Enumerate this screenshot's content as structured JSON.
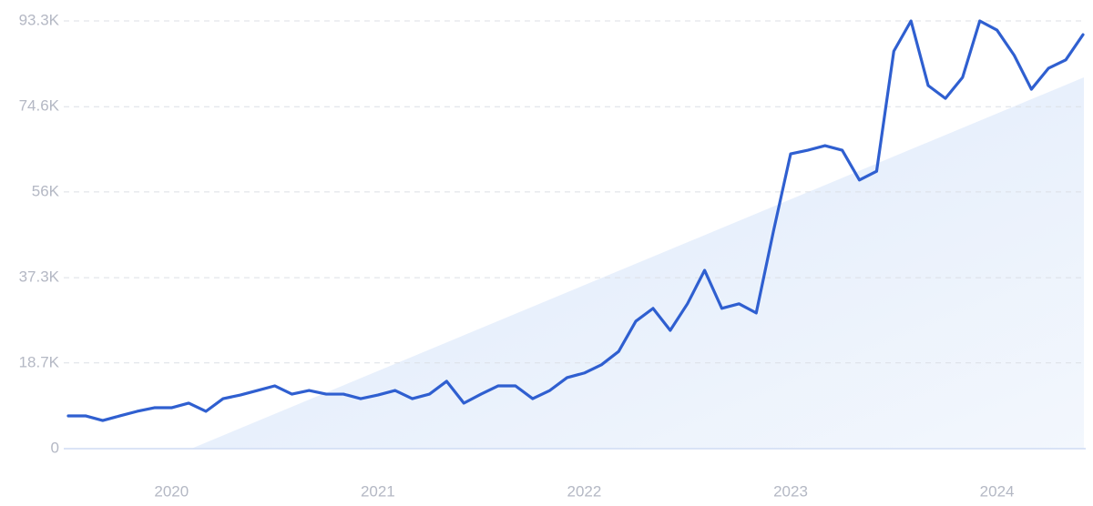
{
  "chart_data": {
    "type": "line",
    "categories": [
      null,
      null,
      null,
      null,
      null,
      null,
      "2020",
      null,
      null,
      null,
      null,
      null,
      null,
      null,
      null,
      null,
      null,
      null,
      "2021",
      null,
      null,
      null,
      null,
      null,
      null,
      null,
      null,
      null,
      null,
      null,
      "2022",
      null,
      null,
      null,
      null,
      null,
      null,
      null,
      null,
      null,
      null,
      null,
      "2023",
      null,
      null,
      null,
      null,
      null,
      null,
      null,
      null,
      null,
      null,
      null,
      "2024",
      null,
      null,
      null,
      null,
      null
    ],
    "values": [
      7150,
      7150,
      6150,
      7150,
      8140,
      8930,
      8930,
      9930,
      8140,
      10900,
      11700,
      12700,
      13700,
      11900,
      12700,
      11900,
      11900,
      10900,
      11700,
      12700,
      10900,
      11900,
      14700,
      9930,
      11900,
      13700,
      13700,
      10900,
      12700,
      15500,
      16500,
      18300,
      21200,
      27800,
      30600,
      25800,
      31600,
      38900,
      30600,
      31600,
      29600,
      47400,
      64300,
      65100,
      66100,
      65100,
      58600,
      60500,
      86700,
      93300,
      79200,
      76400,
      81000,
      93300,
      91300,
      85800,
      78400,
      83000,
      84800,
      90300
    ],
    "color": "#2f5fd0",
    "ylim": [
      0,
      93300
    ],
    "yticks": [
      0,
      {
        "value": 18700,
        "label": "18.7K"
      },
      {
        "value": 37300,
        "label": "37.3K"
      },
      {
        "value": 56000,
        "label": "56K"
      },
      {
        "value": 74600,
        "label": "74.6K"
      },
      {
        "value": 93300,
        "label": "93.3K"
      }
    ],
    "grid": true
  }
}
